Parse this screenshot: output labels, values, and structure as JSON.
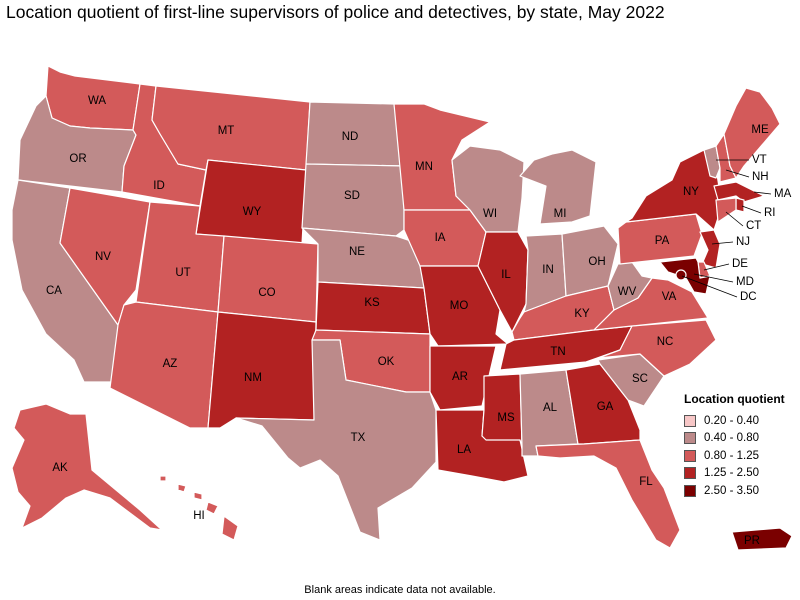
{
  "title": "Location quotient of first-line supervisors of police and detectives, by state, May 2022",
  "footnote": "Blank areas indicate data not available.",
  "legend": {
    "title": "Location quotient",
    "items": [
      {
        "label": "0.20 - 0.40",
        "color": "#f7c7c7"
      },
      {
        "label": "0.40 - 0.80",
        "color": "#bc8a8a"
      },
      {
        "label": "0.80 - 1.25",
        "color": "#d35a5a"
      },
      {
        "label": "1.25 - 2.50",
        "color": "#b22222"
      },
      {
        "label": "2.50 - 3.50",
        "color": "#7a0000"
      }
    ]
  },
  "states": [
    {
      "abbr": "WA",
      "cls": 2
    },
    {
      "abbr": "OR",
      "cls": 1
    },
    {
      "abbr": "CA",
      "cls": 1
    },
    {
      "abbr": "ID",
      "cls": 2
    },
    {
      "abbr": "NV",
      "cls": 2
    },
    {
      "abbr": "MT",
      "cls": 2
    },
    {
      "abbr": "WY",
      "cls": 3
    },
    {
      "abbr": "UT",
      "cls": 2
    },
    {
      "abbr": "AZ",
      "cls": 2
    },
    {
      "abbr": "CO",
      "cls": 2
    },
    {
      "abbr": "NM",
      "cls": 3
    },
    {
      "abbr": "ND",
      "cls": 1
    },
    {
      "abbr": "SD",
      "cls": 1
    },
    {
      "abbr": "NE",
      "cls": 1
    },
    {
      "abbr": "KS",
      "cls": 3
    },
    {
      "abbr": "OK",
      "cls": 2
    },
    {
      "abbr": "TX",
      "cls": 1
    },
    {
      "abbr": "MN",
      "cls": 2
    },
    {
      "abbr": "IA",
      "cls": 2
    },
    {
      "abbr": "MO",
      "cls": 3
    },
    {
      "abbr": "AR",
      "cls": 3
    },
    {
      "abbr": "LA",
      "cls": 3
    },
    {
      "abbr": "WI",
      "cls": 1
    },
    {
      "abbr": "IL",
      "cls": 3
    },
    {
      "abbr": "MI",
      "cls": 1
    },
    {
      "abbr": "IN",
      "cls": 1
    },
    {
      "abbr": "OH",
      "cls": 1
    },
    {
      "abbr": "KY",
      "cls": 2
    },
    {
      "abbr": "TN",
      "cls": 3
    },
    {
      "abbr": "MS",
      "cls": 3
    },
    {
      "abbr": "AL",
      "cls": 1
    },
    {
      "abbr": "GA",
      "cls": 3
    },
    {
      "abbr": "FL",
      "cls": 2
    },
    {
      "abbr": "SC",
      "cls": 1
    },
    {
      "abbr": "NC",
      "cls": 2
    },
    {
      "abbr": "VA",
      "cls": 2
    },
    {
      "abbr": "WV",
      "cls": 1
    },
    {
      "abbr": "PA",
      "cls": 2
    },
    {
      "abbr": "NY",
      "cls": 3
    },
    {
      "abbr": "VT",
      "cls": 1
    },
    {
      "abbr": "NH",
      "cls": 2
    },
    {
      "abbr": "ME",
      "cls": 2
    },
    {
      "abbr": "MA",
      "cls": 3
    },
    {
      "abbr": "RI",
      "cls": 3
    },
    {
      "abbr": "CT",
      "cls": 2
    },
    {
      "abbr": "NJ",
      "cls": 3
    },
    {
      "abbr": "DE",
      "cls": 2
    },
    {
      "abbr": "MD",
      "cls": 4
    },
    {
      "abbr": "DC",
      "cls": 4
    },
    {
      "abbr": "AK",
      "cls": 2
    },
    {
      "abbr": "HI",
      "cls": 2
    },
    {
      "abbr": "PR",
      "cls": 4
    }
  ]
}
